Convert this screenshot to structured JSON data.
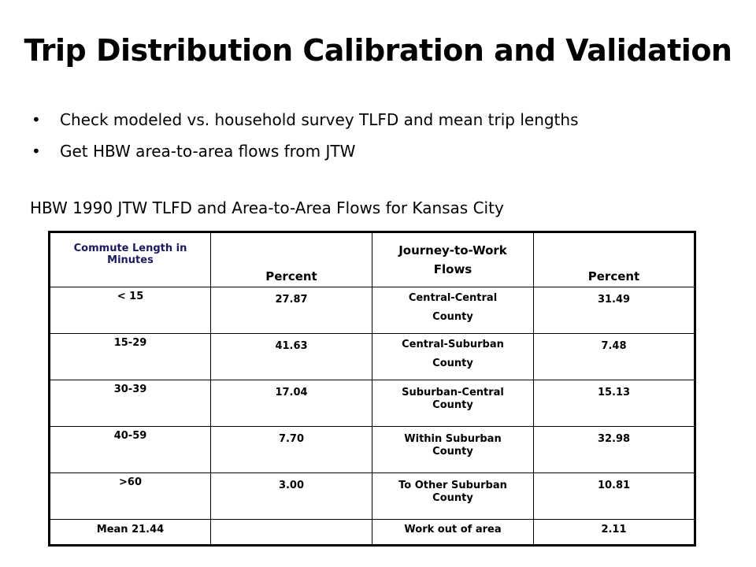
{
  "slide": {
    "title": "Trip Distribution Calibration and Validation",
    "bullets": [
      "Check modeled vs. household survey TLFD and mean trip lengths",
      "Get HBW area-to-area flows from JTW"
    ],
    "bullet_char": "•",
    "subtitle": "HBW 1990 JTW TLFD and Area-to-Area Flows for Kansas City"
  },
  "table": {
    "headers": {
      "commute": "Commute Length in Minutes",
      "percent1": "Percent",
      "jtw_line1": "Journey-to-Work",
      "jtw_line2": "Flows",
      "percent2": "Percent"
    },
    "rows": [
      {
        "length": "< 15",
        "pct": "27.87",
        "flow_a": "Central-Central",
        "flow_b": "County",
        "flow_pct": "31.49"
      },
      {
        "length": "15-29",
        "pct": "41.63",
        "flow_a": "Central-Suburban",
        "flow_b": "County",
        "flow_pct": "7.48"
      },
      {
        "length": "30-39",
        "pct": "17.04",
        "flow_a": "Suburban-Central",
        "flow_b": "County",
        "flow_pct": "15.13"
      },
      {
        "length": "40-59",
        "pct": "7.70",
        "flow_a": "Within Suburban",
        "flow_b": "County",
        "flow_pct": "32.98"
      },
      {
        "length": ">60",
        "pct": "3.00",
        "flow_a": "To Other Suburban",
        "flow_b": "County",
        "flow_pct": "10.81"
      }
    ],
    "last_row": {
      "length": "Mean 21.44",
      "pct": "",
      "flow": "Work out of area",
      "flow_pct": "2.11"
    }
  }
}
